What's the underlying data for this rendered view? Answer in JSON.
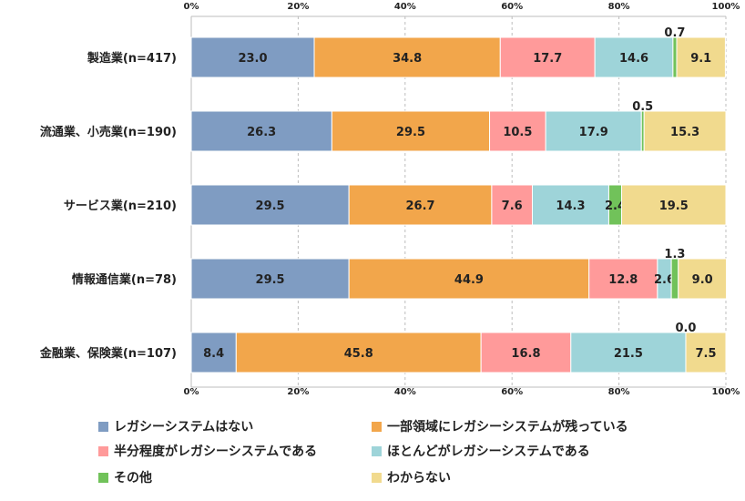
{
  "chart_data": {
    "type": "bar",
    "orientation": "horizontal",
    "stacked": "percent",
    "categories": [
      "製造業(n=417)",
      "流通業、小売業(n=190)",
      "サービス業(n=210)",
      "情報通信業(n=78)",
      "金融業、保険業(n=107)"
    ],
    "series": [
      {
        "name": "レガシーシステムはない",
        "color": "#7f9cc2",
        "values": [
          23.0,
          26.3,
          29.5,
          29.5,
          8.4
        ],
        "labels": [
          "23.0",
          "26.3",
          "29.5",
          "29.5",
          "8.4"
        ]
      },
      {
        "name": "一部領域にレガシーシステムが残っている",
        "color": "#f2a64b",
        "values": [
          34.8,
          29.5,
          26.7,
          44.9,
          45.8
        ],
        "labels": [
          "34.8",
          "29.5",
          "26.7",
          "44.9",
          "45.8"
        ]
      },
      {
        "name": "半分程度がレガシーシステムである",
        "color": "#ff9a9a",
        "values": [
          17.7,
          10.5,
          7.6,
          12.8,
          16.8
        ],
        "labels": [
          "17.7",
          "10.5",
          "7.6",
          "12.8",
          "16.8"
        ]
      },
      {
        "name": "ほとんどがレガシーシステムである",
        "color": "#9ed4d9",
        "values": [
          14.6,
          17.9,
          14.3,
          2.6,
          21.5
        ],
        "labels": [
          "14.6",
          "17.9",
          "14.3",
          "2.6",
          "21.5"
        ]
      },
      {
        "name": "その他",
        "color": "#71c25a",
        "values": [
          0.7,
          0.5,
          2.4,
          1.3,
          0.0
        ],
        "labels": [
          "0.7",
          "0.5",
          "2.4",
          "1.3",
          "0.0"
        ]
      },
      {
        "name": "わからない",
        "color": "#f1da8e",
        "values": [
          9.1,
          15.3,
          19.5,
          9.0,
          7.5
        ],
        "labels": [
          "9.1",
          "15.3",
          "19.5",
          "9.0",
          "7.5"
        ]
      }
    ],
    "x_ticks": [
      "0%",
      "20%",
      "40%",
      "60%",
      "80%",
      "100%"
    ],
    "xlim": [
      0,
      100
    ],
    "grid": true,
    "legend_position": "bottom"
  }
}
